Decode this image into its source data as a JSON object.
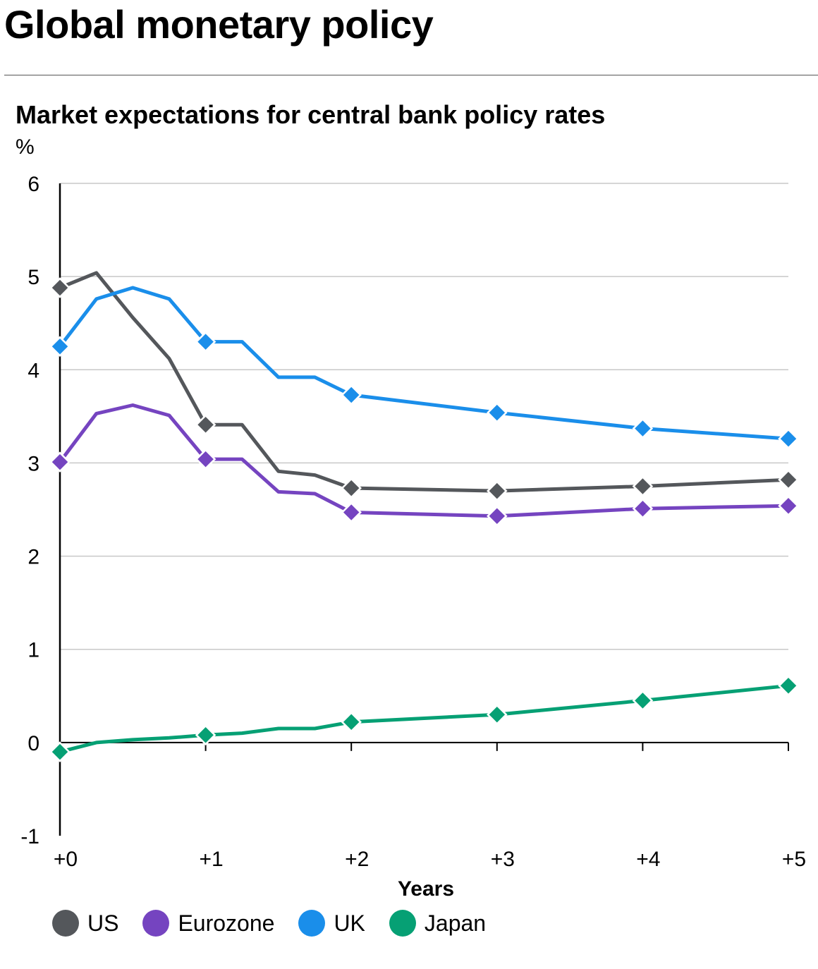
{
  "page_title": "Global monetary policy",
  "chart_data": {
    "type": "line",
    "title": "Market expectations for central bank policy rates",
    "ylabel": "%",
    "xlabel": "Years",
    "ylim": [
      -1,
      6
    ],
    "xlim": [
      0,
      5
    ],
    "yticks": [
      "6",
      "5",
      "4",
      "3",
      "2",
      "1",
      "0",
      "-1"
    ],
    "ytick_values": [
      6,
      5,
      4,
      3,
      2,
      1,
      0,
      -1
    ],
    "xticks": [
      "+0",
      "+1",
      "+2",
      "+3",
      "+4",
      "+5"
    ],
    "xtick_values": [
      0,
      1,
      2,
      3,
      4,
      5
    ],
    "grid": true,
    "legend_position": "bottom-left",
    "series": [
      {
        "name": "US",
        "color": "#54575b",
        "x": [
          0,
          0.25,
          0.5,
          0.75,
          1,
          1.25,
          1.5,
          1.75,
          2,
          3,
          4,
          5
        ],
        "values": [
          4.88,
          5.04,
          4.56,
          4.12,
          3.41,
          3.41,
          2.91,
          2.87,
          2.73,
          2.7,
          2.75,
          2.82
        ],
        "markers_at": [
          0,
          1,
          2,
          3,
          4,
          5
        ]
      },
      {
        "name": "Eurozone",
        "color": "#7544c0",
        "x": [
          0,
          0.25,
          0.5,
          0.75,
          1,
          1.25,
          1.5,
          1.75,
          2,
          3,
          4,
          5
        ],
        "values": [
          3.01,
          3.53,
          3.62,
          3.51,
          3.04,
          3.04,
          2.69,
          2.67,
          2.47,
          2.43,
          2.51,
          2.54
        ],
        "markers_at": [
          0,
          1,
          2,
          3,
          4,
          5
        ]
      },
      {
        "name": "UK",
        "color": "#1a8eea",
        "x": [
          0,
          0.25,
          0.5,
          0.75,
          1,
          1.25,
          1.5,
          1.75,
          2,
          3,
          4,
          5
        ],
        "values": [
          4.25,
          4.76,
          4.88,
          4.76,
          4.3,
          4.3,
          3.92,
          3.92,
          3.73,
          3.54,
          3.37,
          3.26
        ],
        "markers_at": [
          0,
          1,
          2,
          3,
          4,
          5
        ]
      },
      {
        "name": "Japan",
        "color": "#06a074",
        "x": [
          0,
          0.25,
          0.5,
          0.75,
          1,
          1.25,
          1.5,
          1.75,
          2,
          3,
          4,
          5
        ],
        "values": [
          -0.1,
          0.0,
          0.03,
          0.05,
          0.08,
          0.1,
          0.15,
          0.15,
          0.22,
          0.3,
          0.45,
          0.61
        ],
        "markers_at": [
          0,
          1,
          2,
          3,
          4,
          5
        ]
      }
    ]
  }
}
